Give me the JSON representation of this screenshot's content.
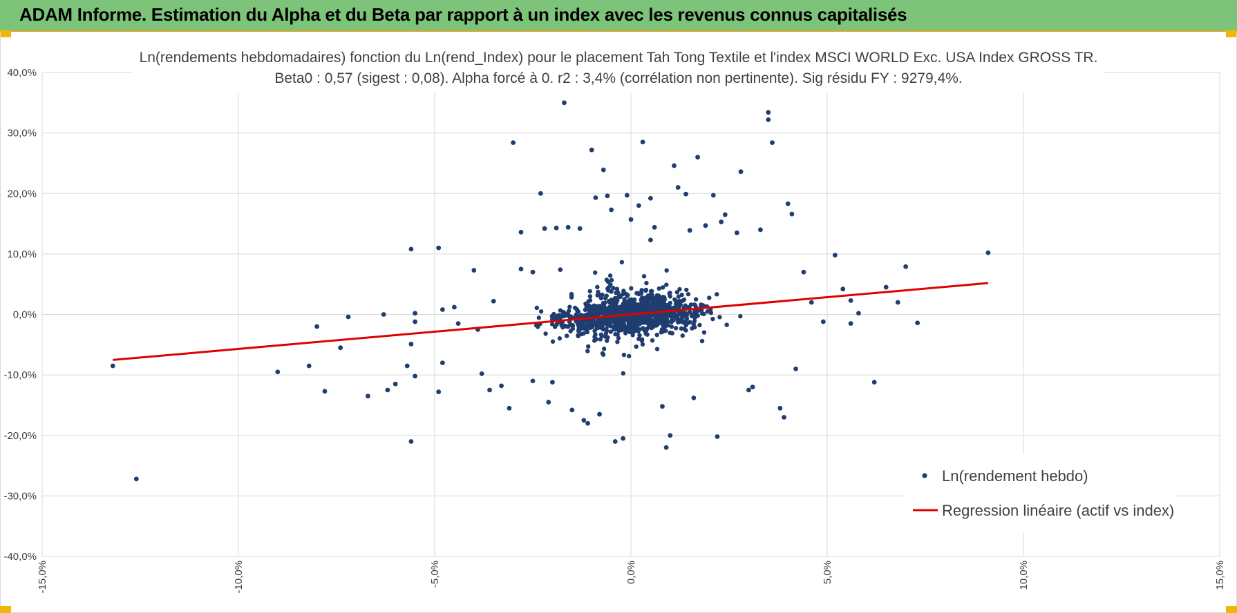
{
  "header": {
    "title": "ADAM Informe. Estimation du Alpha et du Beta par rapport à un index avec les revenus connus capitalisés",
    "background": "#7dc47a",
    "accent": "#f2b705"
  },
  "chart_data": {
    "type": "scatter",
    "title_line1": "Ln(rendements hebdomadaires) fonction du Ln(rend_Index) pour le placement Tah Tong Textile  et l'index MSCI WORLD Exc. USA Index GROSS TR.",
    "title_line2": "Beta0 : 0,57 (sigest : 0,08).  Alpha forcé à 0. r2 : 3,4% (corrélation non pertinente). Sig résidu FY : 9279,4%.",
    "xlabel": "",
    "ylabel": "",
    "xlim": [
      -15,
      15
    ],
    "ylim": [
      -40,
      40
    ],
    "x_ticks": [
      -15,
      -10,
      -5,
      0,
      5,
      10,
      15
    ],
    "x_tick_labels": [
      "-15,0%",
      "-10,0%",
      "-5,0%",
      "0,0%",
      "5,0%",
      "10,0%",
      "15,0%"
    ],
    "y_ticks": [
      40,
      30,
      20,
      10,
      0,
      -10,
      -20,
      -30,
      -40
    ],
    "y_tick_labels": [
      "40,0%",
      "30,0%",
      "20,0%",
      "10,0%",
      "0,0%",
      "-10,0%",
      "-20,0%",
      "-30,0%",
      "-40,0%"
    ],
    "grid": true,
    "legend_position": "bottom-right",
    "series": [
      {
        "name": "Ln(rendement hebdo)",
        "kind": "scatter",
        "color": "#1f3d6e",
        "points": [
          [
            -13.2,
            -8.5
          ],
          [
            -12.6,
            -27.2
          ],
          [
            -9.0,
            -9.5
          ],
          [
            -8.2,
            -8.5
          ],
          [
            -8.0,
            -2.0
          ],
          [
            -7.8,
            -12.7
          ],
          [
            -7.4,
            -5.5
          ],
          [
            -7.2,
            -0.4
          ],
          [
            -6.7,
            -13.5
          ],
          [
            -6.3,
            0.0
          ],
          [
            -6.2,
            -12.5
          ],
          [
            -6.0,
            -11.5
          ],
          [
            -5.7,
            -8.5
          ],
          [
            -5.6,
            -21.0
          ],
          [
            -5.6,
            -4.9
          ],
          [
            -5.6,
            10.8
          ],
          [
            -5.5,
            0.2
          ],
          [
            -5.5,
            -1.2
          ],
          [
            -5.5,
            -10.2
          ],
          [
            -4.9,
            11.0
          ],
          [
            -4.9,
            -12.8
          ],
          [
            -4.8,
            -8.0
          ],
          [
            -4.8,
            0.8
          ],
          [
            -4.5,
            1.2
          ],
          [
            -4.4,
            -1.5
          ],
          [
            -4.0,
            7.3
          ],
          [
            -3.9,
            -2.5
          ],
          [
            -3.8,
            -9.8
          ],
          [
            -3.6,
            -12.5
          ],
          [
            -3.5,
            2.2
          ],
          [
            -3.3,
            -11.8
          ],
          [
            -3.1,
            -15.5
          ],
          [
            -3.0,
            28.4
          ],
          [
            -2.8,
            13.6
          ],
          [
            -2.8,
            7.5
          ],
          [
            -2.5,
            7.0
          ],
          [
            -2.5,
            -11.0
          ],
          [
            -2.3,
            20.0
          ],
          [
            -2.2,
            14.2
          ],
          [
            -2.1,
            -14.5
          ],
          [
            -2.0,
            -11.2
          ],
          [
            -1.9,
            14.3
          ],
          [
            -1.8,
            7.4
          ],
          [
            -1.7,
            35.0
          ],
          [
            -1.6,
            14.4
          ],
          [
            -1.5,
            -15.8
          ],
          [
            -1.3,
            14.2
          ],
          [
            -1.2,
            -17.5
          ],
          [
            -1.1,
            -18.0
          ],
          [
            -1.0,
            27.2
          ],
          [
            -0.9,
            19.3
          ],
          [
            -0.8,
            -16.5
          ],
          [
            -0.7,
            23.9
          ],
          [
            -0.6,
            19.6
          ],
          [
            -0.5,
            17.3
          ],
          [
            -0.4,
            -21.0
          ],
          [
            -0.2,
            -20.5
          ],
          [
            -0.1,
            19.7
          ],
          [
            0.0,
            15.7
          ],
          [
            0.2,
            18.0
          ],
          [
            0.3,
            28.5
          ],
          [
            0.5,
            19.2
          ],
          [
            0.5,
            12.3
          ],
          [
            0.6,
            14.4
          ],
          [
            0.8,
            -15.2
          ],
          [
            0.9,
            -22.0
          ],
          [
            1.0,
            -20.0
          ],
          [
            1.1,
            24.6
          ],
          [
            1.2,
            21.0
          ],
          [
            1.4,
            19.9
          ],
          [
            1.5,
            13.9
          ],
          [
            1.6,
            -13.8
          ],
          [
            1.7,
            26.0
          ],
          [
            1.9,
            14.7
          ],
          [
            2.1,
            19.7
          ],
          [
            2.2,
            -20.2
          ],
          [
            2.3,
            15.3
          ],
          [
            2.4,
            16.5
          ],
          [
            2.7,
            13.5
          ],
          [
            2.8,
            23.6
          ],
          [
            3.0,
            -12.5
          ],
          [
            3.1,
            -12.0
          ],
          [
            3.3,
            14.0
          ],
          [
            3.5,
            33.4
          ],
          [
            3.5,
            32.2
          ],
          [
            3.6,
            28.4
          ],
          [
            3.8,
            -15.5
          ],
          [
            3.9,
            -17.0
          ],
          [
            4.0,
            18.3
          ],
          [
            4.1,
            16.6
          ],
          [
            4.2,
            -9.0
          ],
          [
            4.4,
            7.0
          ],
          [
            4.6,
            2.0
          ],
          [
            4.9,
            -1.2
          ],
          [
            5.2,
            9.8
          ],
          [
            5.4,
            4.2
          ],
          [
            5.6,
            2.3
          ],
          [
            5.6,
            -1.5
          ],
          [
            5.8,
            0.2
          ],
          [
            6.2,
            -11.2
          ],
          [
            6.5,
            4.5
          ],
          [
            6.8,
            2.0
          ],
          [
            7.0,
            7.9
          ],
          [
            7.3,
            -1.4
          ],
          [
            9.1,
            10.2
          ]
        ]
      },
      {
        "name": "Regression linéaire (actif vs index)",
        "kind": "line",
        "color": "#e00000",
        "beta": 0.57,
        "alpha": 0,
        "x_range": [
          -13.2,
          9.1
        ]
      }
    ]
  }
}
